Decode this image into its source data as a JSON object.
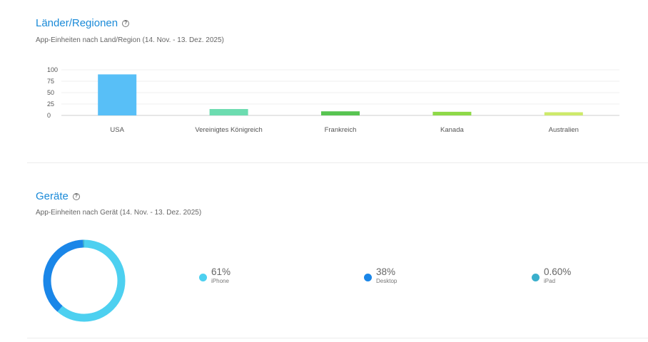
{
  "regions": {
    "title": "Länder/Regionen",
    "subtitle": "App-Einheiten nach Land/Region (14. Nov. - 13. Dez. 2025)"
  },
  "devices": {
    "title": "Geräte",
    "subtitle": "App-Einheiten nach Gerät (14. Nov. - 13. Dez. 2025)",
    "items": [
      {
        "percent": "61%",
        "label": "iPhone",
        "value": 61,
        "color": "#4dd0f0"
      },
      {
        "percent": "38%",
        "label": "Desktop",
        "value": 38,
        "color": "#1a86e8"
      },
      {
        "percent": "0.60%",
        "label": "iPad",
        "value": 0.6,
        "color": "#3aafcc"
      }
    ]
  },
  "help_icon_glyph": "?",
  "chart_data": {
    "type": "bar",
    "categories": [
      "USA",
      "Vereinigtes Königreich",
      "Frankreich",
      "Kanada",
      "Australien"
    ],
    "values": [
      90,
      14,
      9,
      8,
      7
    ],
    "colors": [
      "#58bff7",
      "#6cdcb0",
      "#57c451",
      "#8ed948",
      "#cdea6a"
    ],
    "yticks": [
      0,
      25,
      50,
      75,
      100
    ],
    "ylim": [
      0,
      100
    ],
    "grid": true
  }
}
